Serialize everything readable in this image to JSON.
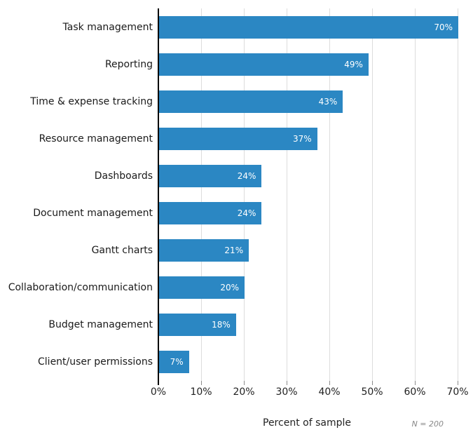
{
  "chart_data": {
    "type": "bar",
    "orientation": "horizontal",
    "categories": [
      "Task management",
      "Reporting",
      "Time & expense tracking",
      "Resource management",
      "Dashboards",
      "Document management",
      "Gantt charts",
      "Collaboration/communication",
      "Budget management",
      "Client/user permissions"
    ],
    "values": [
      70,
      49,
      43,
      37,
      24,
      24,
      21,
      20,
      18,
      7
    ],
    "value_labels": [
      "70%",
      "49%",
      "43%",
      "37%",
      "24%",
      "24%",
      "21%",
      "20%",
      "18%",
      "7%"
    ],
    "x_ticks": [
      "0%",
      "10%",
      "20%",
      "30%",
      "40%",
      "50%",
      "60%",
      "70%"
    ],
    "x_tick_values": [
      0,
      10,
      20,
      30,
      40,
      50,
      60,
      70
    ],
    "xlim": [
      0,
      70
    ],
    "xlabel": "Percent of sample",
    "note": "N = 200",
    "grid": true,
    "legend": false,
    "title": "",
    "colors": {
      "bar": "#2b87c3",
      "value_label": "#ffffff",
      "gridline": "#dcdcdc",
      "axis": "#000000",
      "category_label": "#1a1a1a",
      "tick_label": "#222222",
      "note": "#888888"
    }
  }
}
